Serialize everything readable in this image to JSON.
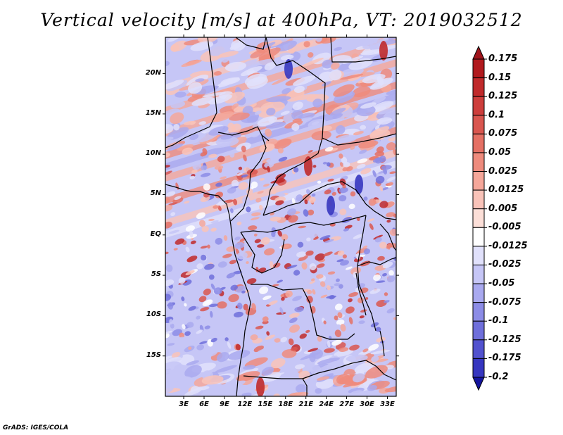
{
  "title": "Vertical velocity [m/s] at 400hPa, VT: 2019032512",
  "credit": "GrADS: IGES/COLA",
  "map": {
    "lat_labels": [
      {
        "text": "20N",
        "lat": 20
      },
      {
        "text": "15N",
        "lat": 15
      },
      {
        "text": "10N",
        "lat": 10
      },
      {
        "text": "5N",
        "lat": 5
      },
      {
        "text": "EQ",
        "lat": 0
      },
      {
        "text": "5S",
        "lat": -5
      },
      {
        "text": "10S",
        "lat": -10
      },
      {
        "text": "15S",
        "lat": -15
      }
    ],
    "lon_labels": [
      {
        "text": "3E",
        "lon": 3
      },
      {
        "text": "6E",
        "lon": 6
      },
      {
        "text": "9E",
        "lon": 9
      },
      {
        "text": "12E",
        "lon": 12
      },
      {
        "text": "15E",
        "lon": 15
      },
      {
        "text": "18E",
        "lon": 18
      },
      {
        "text": "21E",
        "lon": 21
      },
      {
        "text": "24E",
        "lon": 24
      },
      {
        "text": "27E",
        "lon": 27
      },
      {
        "text": "30E",
        "lon": 30
      },
      {
        "text": "33E",
        "lon": 33
      }
    ]
  },
  "colorbar": {
    "levels": [
      {
        "label": "0.175",
        "color": "#b11a1e"
      },
      {
        "label": "0.15",
        "color": "#c02a2b"
      },
      {
        "label": "0.125",
        "color": "#cd3e3c"
      },
      {
        "label": "0.1",
        "color": "#d9564f"
      },
      {
        "label": "0.075",
        "color": "#e47064"
      },
      {
        "label": "0.05",
        "color": "#ee8b7d"
      },
      {
        "label": "0.025",
        "color": "#f5a79a"
      },
      {
        "label": "0.0125",
        "color": "#f9c3b9"
      },
      {
        "label": "0.005",
        "color": "#fcdfd8"
      },
      {
        "label": "-0.005",
        "color": "#ffffff"
      },
      {
        "label": "-0.0125",
        "color": "#e1e1fb"
      },
      {
        "label": "-0.025",
        "color": "#c6c6f6"
      },
      {
        "label": "-0.05",
        "color": "#a9a9ef"
      },
      {
        "label": "-0.075",
        "color": "#8c8ce6"
      },
      {
        "label": "-0.1",
        "color": "#6f6fdb"
      },
      {
        "label": "-0.125",
        "color": "#5252cf"
      },
      {
        "label": "-0.175",
        "color": "#3636c0"
      },
      {
        "label": "-0.2",
        "color": "#1e1eae"
      }
    ],
    "max_color": "#a0141b",
    "min_color": "#14149e"
  }
}
